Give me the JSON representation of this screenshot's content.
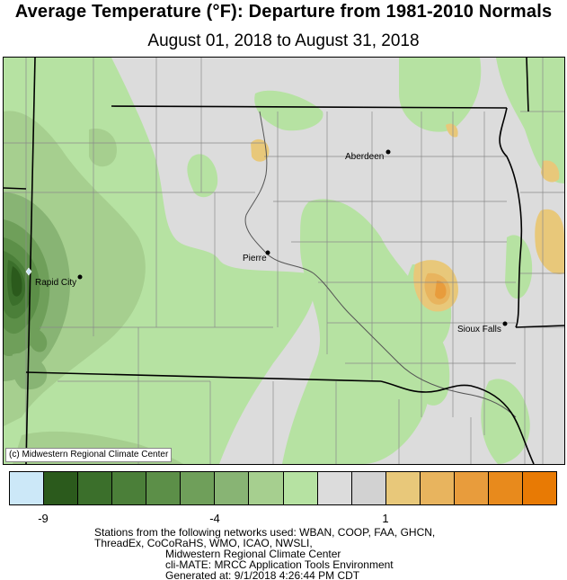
{
  "header": {
    "title": "Average Temperature (°F): Departure from 1981-2010 Normals",
    "subtitle": "August 01, 2018 to August 31, 2018"
  },
  "map": {
    "credit": "(c) Midwestern Regional Climate Center",
    "cities": [
      {
        "name": "Aberdeen"
      },
      {
        "name": "Pierre"
      },
      {
        "name": "Rapid City"
      },
      {
        "name": "Sioux Falls"
      }
    ]
  },
  "legend": {
    "colors": [
      "#cce8f8",
      "#2b5a1c",
      "#3b6f2b",
      "#4b7f39",
      "#5c8f48",
      "#6f9f5a",
      "#88b474",
      "#a6cf8f",
      "#b6e2a2",
      "#dcdcdc",
      "#d2d2d2",
      "#e8c87a",
      "#e8b45e",
      "#e89c3c",
      "#e88a1c",
      "#e87a04"
    ],
    "labels": [
      "-9",
      "-4",
      "1"
    ]
  },
  "footer": {
    "line1": "Stations from the following networks used: WBAN, COOP, FAA, GHCN,",
    "line2": "ThreadEx, CoCoRaHS, WMO, ICAO, NWSLI,",
    "line3": "Midwestern Regional Climate Center",
    "line4": "cli-MATE: MRCC Application Tools Environment",
    "line5": "Generated at: 9/1/2018 4:26:44 PM CDT"
  }
}
